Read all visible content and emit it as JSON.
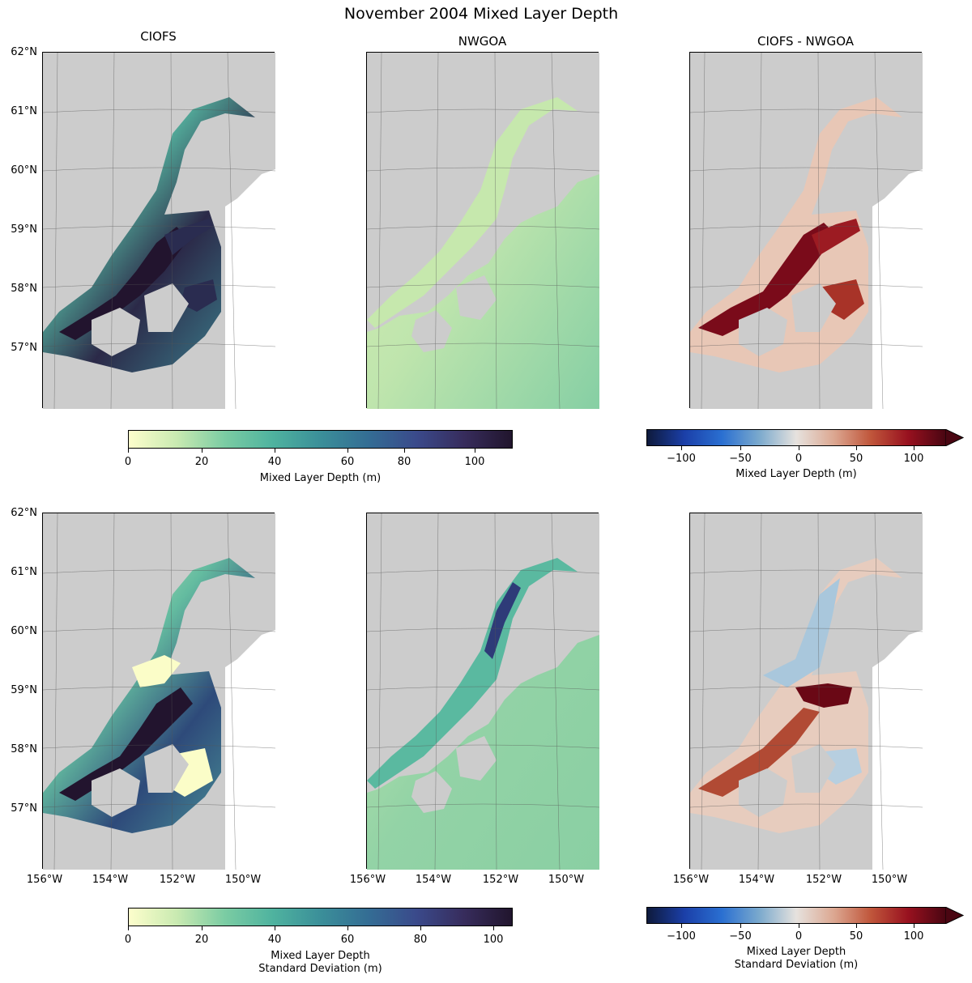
{
  "figure": {
    "title": "November 2004 Mixed Layer Depth",
    "panel_titles": [
      "CIOFS",
      "NWGOA",
      "CIOFS - NWGOA"
    ],
    "lat_labels": [
      "62°N",
      "61°N",
      "60°N",
      "59°N",
      "58°N",
      "57°N"
    ],
    "lon_labels": [
      "156°W",
      "154°W",
      "152°W",
      "150°W"
    ],
    "colorbars": [
      {
        "ticks": [
          "0",
          "20",
          "40",
          "60",
          "80",
          "100"
        ],
        "label_line1": "Mixed Layer Depth (m)",
        "label_line2": "",
        "range": [
          0,
          111
        ]
      },
      {
        "ticks": [
          "−100",
          "−50",
          "0",
          "50",
          "100"
        ],
        "label_line1": "Mixed Layer Depth (m)",
        "label_line2": "",
        "range": [
          -130,
          130
        ]
      },
      {
        "ticks": [
          "0",
          "20",
          "40",
          "60",
          "80",
          "100"
        ],
        "label_line1": "Mixed Layer Depth",
        "label_line2": "Standard Deviation (m)",
        "range": [
          0,
          105
        ]
      },
      {
        "ticks": [
          "−100",
          "−50",
          "0",
          "50",
          "100"
        ],
        "label_line1": "Mixed Layer Depth",
        "label_line2": "Standard Deviation (m)",
        "range": [
          -130,
          130
        ]
      }
    ],
    "colors": {
      "land": "#cccccc",
      "seq_low": "#fdfecc",
      "seq_high": "#21152d",
      "div_low": "#0e1a3c",
      "div_high": "#4a0612"
    }
  }
}
